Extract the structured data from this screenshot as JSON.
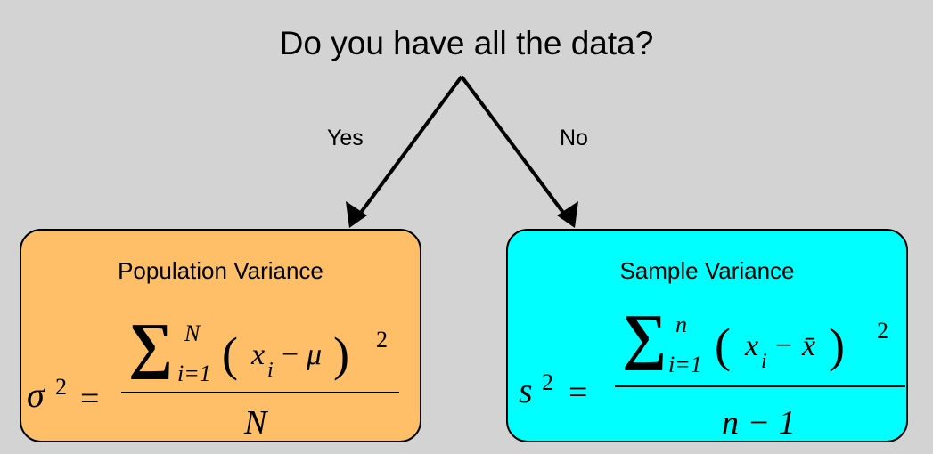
{
  "question": "Do you have all the data?",
  "branches": {
    "yes": "Yes",
    "no": "No"
  },
  "colors": {
    "background": "#d3d3d3",
    "population_box": "#ffbf69",
    "sample_box": "#00ffff"
  },
  "population": {
    "title": "Population Variance",
    "lhs": "σ",
    "lhs_exp": "2",
    "equals": "=",
    "sum": "∑",
    "upper": "N",
    "lower": "i=1",
    "lparen": "(",
    "x": "x",
    "sub": "i",
    "minus": "−",
    "mean": "μ",
    "rparen": ")",
    "exp": "2",
    "denominator": "N"
  },
  "sample": {
    "title": "Sample Variance",
    "lhs": "s",
    "lhs_exp": "2",
    "equals": "=",
    "sum": "∑",
    "upper": "n",
    "lower": "i=1",
    "lparen": "(",
    "x": "x",
    "sub": "i",
    "minus": "−",
    "mean": "x̄",
    "rparen": ")",
    "exp": "2",
    "denominator": "n − 1"
  }
}
